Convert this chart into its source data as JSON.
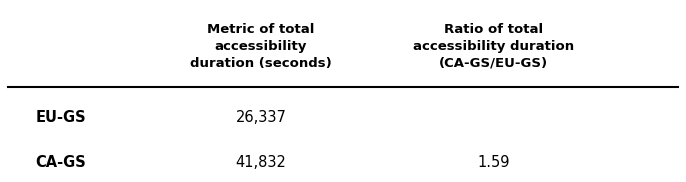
{
  "col_headers": [
    "Metric of total\naccessibility\nduration (seconds)",
    "Ratio of total\naccessibility duration\n(CA-GS/EU-GS)"
  ],
  "row_labels": [
    "EU-GS",
    "CA-GS"
  ],
  "col1_values": [
    "26,337",
    "41,832"
  ],
  "col2_values": [
    "",
    "1.59"
  ],
  "bg_color": "#ffffff",
  "header_fontsize": 9.5,
  "cell_fontsize": 10.5,
  "row_label_fontsize": 10.5,
  "header_font_weight": "bold",
  "row_label_font_weight": "bold",
  "cell_font_weight": "normal",
  "line_color": "#000000",
  "text_color": "#000000"
}
